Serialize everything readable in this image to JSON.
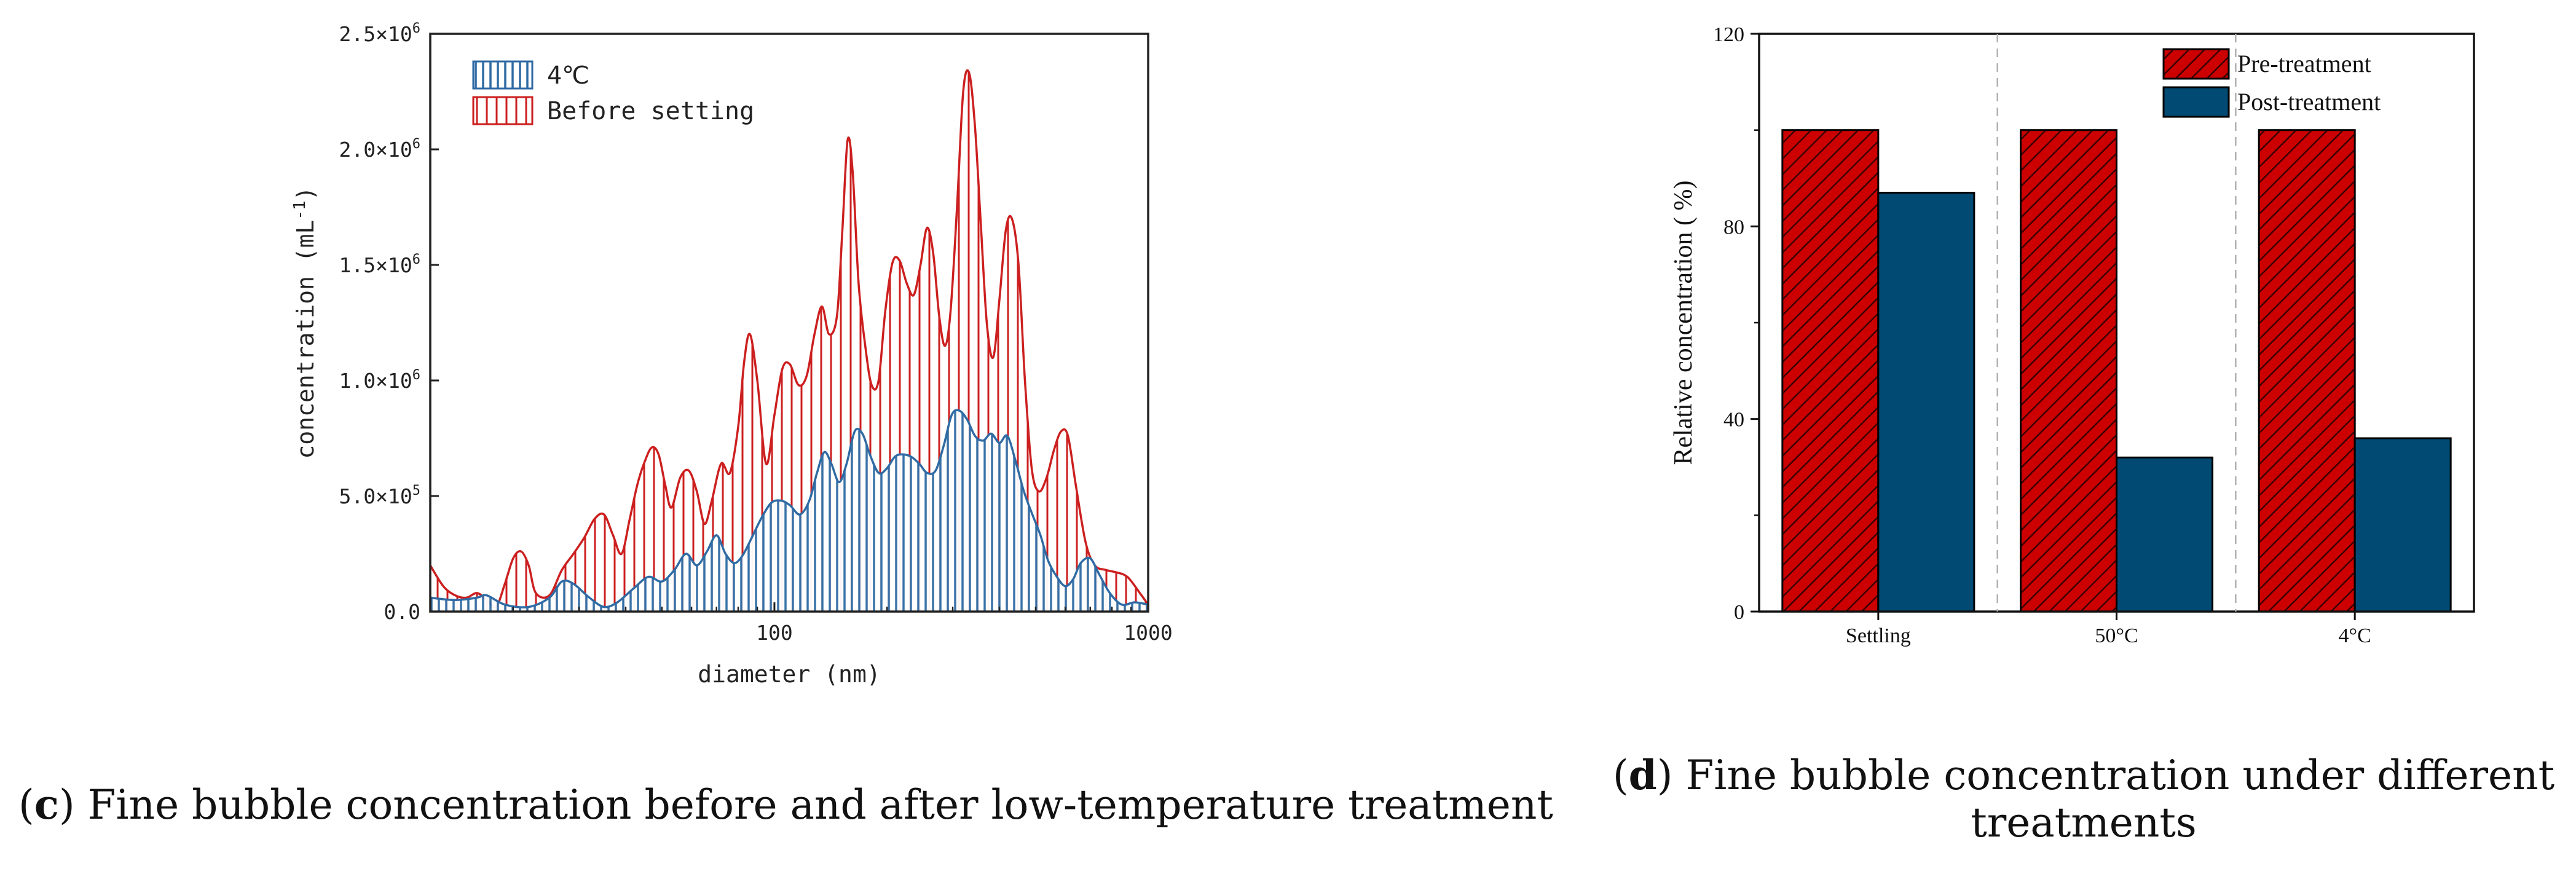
{
  "chart_data": [
    {
      "id": "c",
      "type": "area",
      "title": "",
      "xlabel": "diameter (nm)",
      "ylabel": "concentration (mL-1)",
      "xscale": "log",
      "xlim": [
        12,
        1000
      ],
      "ylim": [
        0,
        2500000
      ],
      "x_ticks": [
        {
          "value": 100,
          "label": "100"
        },
        {
          "value": 1000,
          "label": "1000"
        }
      ],
      "y_ticks": [
        {
          "value": 0,
          "label": "0.0"
        },
        {
          "value": 500000,
          "label": "5.0×10",
          "exp": "5"
        },
        {
          "value": 1000000,
          "label": "1.0×10",
          "exp": "6"
        },
        {
          "value": 1500000,
          "label": "1.5×10",
          "exp": "6"
        },
        {
          "value": 2000000,
          "label": "2.0×10",
          "exp": "6"
        },
        {
          "value": 2500000,
          "label": "2.5×10",
          "exp": "6"
        }
      ],
      "legend_position": "top-left",
      "series": [
        {
          "name": "4℃",
          "color": "#2f6aa3",
          "x": [
            12,
            14,
            16,
            17,
            19,
            22,
            25,
            27,
            29,
            32,
            35,
            38,
            42,
            46,
            50,
            54,
            58,
            62,
            66,
            70,
            74,
            78,
            82,
            87,
            92,
            98,
            104,
            110,
            117,
            124,
            130,
            136,
            142,
            149,
            156,
            164,
            172,
            180,
            190,
            200,
            210,
            220,
            232,
            244,
            256,
            270,
            284,
            298,
            312,
            328,
            344,
            362,
            380,
            400,
            420,
            442,
            465,
            490,
            515,
            540,
            570,
            600,
            630,
            660,
            700,
            740,
            790,
            850,
            920,
            1000
          ],
          "values": [
            60000,
            50000,
            60000,
            70000,
            30000,
            20000,
            60000,
            130000,
            120000,
            60000,
            20000,
            40000,
            100000,
            150000,
            130000,
            180000,
            250000,
            200000,
            260000,
            330000,
            250000,
            210000,
            240000,
            320000,
            400000,
            470000,
            480000,
            460000,
            420000,
            480000,
            600000,
            690000,
            640000,
            560000,
            640000,
            780000,
            770000,
            680000,
            600000,
            620000,
            670000,
            680000,
            670000,
            640000,
            600000,
            610000,
            720000,
            850000,
            870000,
            830000,
            760000,
            740000,
            770000,
            730000,
            760000,
            650000,
            520000,
            420000,
            330000,
            220000,
            150000,
            110000,
            140000,
            210000,
            230000,
            160000,
            80000,
            30000,
            40000,
            30000
          ]
        },
        {
          "name": "Before setting",
          "color": "#cc1f1f",
          "x": [
            12,
            13,
            14,
            15,
            16,
            17,
            18,
            19,
            20,
            21,
            22,
            23,
            25,
            27,
            29,
            31,
            33,
            35,
            37,
            39,
            41,
            43,
            45,
            47,
            49,
            51,
            53,
            56,
            59,
            62,
            65,
            68,
            72,
            76,
            80,
            83,
            86,
            90,
            95,
            100,
            105,
            110,
            116,
            122,
            128,
            134,
            140,
            147,
            152,
            157,
            162,
            168,
            175,
            182,
            190,
            198,
            207,
            216,
            226,
            236,
            246,
            256,
            266,
            276,
            286,
            296,
            308,
            320,
            332,
            344,
            356,
            370,
            385,
            400,
            416,
            432,
            450,
            468,
            488,
            510,
            535,
            560,
            585,
            610,
            640,
            680,
            720,
            770,
            820,
            880,
            950,
            1000
          ],
          "values": [
            200000,
            110000,
            70000,
            60000,
            80000,
            50000,
            20000,
            120000,
            230000,
            260000,
            200000,
            80000,
            70000,
            180000,
            250000,
            320000,
            400000,
            420000,
            330000,
            250000,
            400000,
            550000,
            650000,
            710000,
            680000,
            550000,
            450000,
            580000,
            610000,
            520000,
            380000,
            480000,
            640000,
            600000,
            800000,
            1080000,
            1200000,
            1000000,
            640000,
            850000,
            1050000,
            1070000,
            980000,
            1020000,
            1200000,
            1320000,
            1200000,
            1280000,
            1650000,
            2040000,
            1900000,
            1420000,
            1150000,
            980000,
            1000000,
            1300000,
            1510000,
            1520000,
            1420000,
            1370000,
            1500000,
            1660000,
            1550000,
            1280000,
            1150000,
            1300000,
            1750000,
            2250000,
            2330000,
            2100000,
            1700000,
            1250000,
            1100000,
            1350000,
            1650000,
            1700000,
            1500000,
            1000000,
            620000,
            520000,
            580000,
            700000,
            780000,
            760000,
            550000,
            300000,
            200000,
            180000,
            170000,
            150000,
            80000,
            30000
          ]
        }
      ]
    },
    {
      "id": "d",
      "type": "bar",
      "title": "",
      "xlabel": "",
      "ylabel": "Relative concentration ( %)",
      "ylim": [
        0,
        120
      ],
      "y_ticks": [
        0,
        40,
        80,
        120
      ],
      "categories": [
        "Settling",
        "50°C",
        "4°C"
      ],
      "legend_position": "top-right",
      "grid": false,
      "series": [
        {
          "name": "Pre-treatment",
          "color": "#cc0000",
          "pattern": "hatch",
          "values": [
            100,
            100,
            100
          ]
        },
        {
          "name": "Post-treatment",
          "color": "#004a73",
          "pattern": "solid",
          "values": [
            87,
            32,
            36
          ]
        }
      ]
    }
  ],
  "captions": {
    "c": {
      "letter": "c",
      "text": " Fine bubble concentration before and after low-temperature treatment"
    },
    "d": {
      "letter": "d",
      "line1": " Fine bubble concentration under different",
      "line2": "treatments"
    }
  }
}
